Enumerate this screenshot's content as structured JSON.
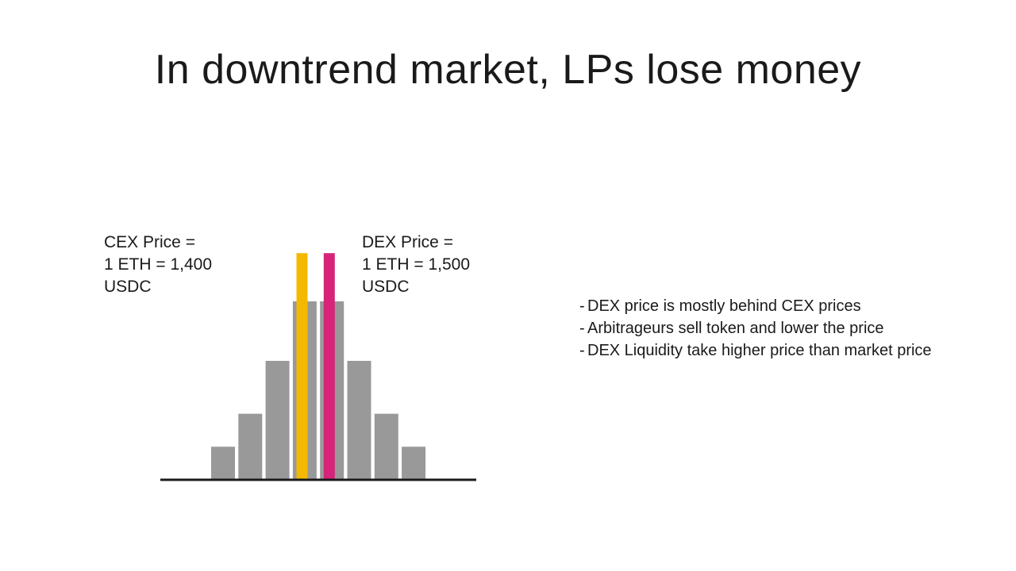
{
  "slide": {
    "title": "In downtrend market, LPs lose money"
  },
  "cex_label": {
    "lines": [
      "CEX Price =",
      "1 ETH = 1,400",
      "USDC"
    ]
  },
  "dex_label": {
    "lines": [
      "DEX Price =",
      "1 ETH = 1,500",
      "USDC"
    ]
  },
  "histogram": {
    "bar_levels": [
      1,
      2,
      3.6,
      5.4,
      5.4,
      3.6,
      2,
      1
    ],
    "max_level": 5.4,
    "bar_color": "#999999",
    "baseline_color": "#1a1a1a",
    "markers": [
      {
        "name": "cex-price-marker",
        "color": "#F5B800",
        "level": 7.0,
        "position": 2.9
      },
      {
        "name": "dex-price-marker",
        "color": "#D6247A",
        "level": 7.0,
        "position": 3.9
      }
    ]
  },
  "bullets": [
    "DEX price is mostly behind CEX prices",
    "Arbitrageurs sell token and lower the price",
    "DEX Liquidity take higher price than market price"
  ]
}
